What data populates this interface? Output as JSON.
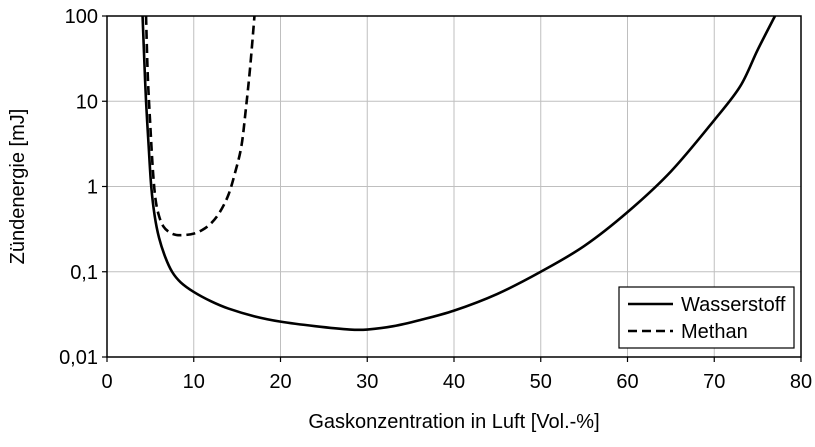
{
  "chart_data": {
    "type": "line",
    "title": "",
    "xlabel": "Gaskonzentration in Luft [Vol.-%]",
    "ylabel": "Zündenergie [mJ]",
    "xlim": [
      0,
      80
    ],
    "ylim": [
      0.01,
      100
    ],
    "yscale": "log",
    "grid": "on",
    "legend_position": "bottom-right",
    "x_ticks": [
      0,
      10,
      20,
      30,
      40,
      50,
      60,
      70,
      80
    ],
    "x_tick_labels": [
      "0",
      "10",
      "20",
      "30",
      "40",
      "50",
      "60",
      "70",
      "80"
    ],
    "y_ticks": [
      0.01,
      0.1,
      1,
      10,
      100
    ],
    "y_tick_labels": [
      "0,01",
      "0,1",
      "1",
      "10",
      "100"
    ],
    "series": [
      {
        "name": "Wasserstoff",
        "style": "solid",
        "color": "#000000",
        "x": [
          4.1,
          4.3,
          4.5,
          4.8,
          5.1,
          5.5,
          6.0,
          6.7,
          7.5,
          8.5,
          10,
          12,
          14,
          17,
          20,
          24,
          28,
          30,
          33,
          36,
          40,
          45,
          50,
          55,
          60,
          65,
          70,
          73,
          75,
          77
        ],
        "y": [
          100,
          30,
          10,
          3,
          1,
          0.45,
          0.25,
          0.15,
          0.1,
          0.075,
          0.058,
          0.045,
          0.037,
          0.03,
          0.026,
          0.023,
          0.021,
          0.021,
          0.023,
          0.027,
          0.035,
          0.055,
          0.1,
          0.2,
          0.5,
          1.5,
          6,
          15,
          40,
          100
        ]
      },
      {
        "name": "Methan",
        "style": "dashed",
        "color": "#000000",
        "x": [
          4.5,
          4.7,
          5.0,
          5.3,
          5.6,
          6.0,
          6.5,
          7.2,
          8.0,
          9.0,
          10.0,
          11.0,
          12.0,
          13.0,
          14.0,
          14.8,
          15.5,
          16.0,
          16.5,
          17.0
        ],
        "y": [
          100,
          20,
          5,
          1.5,
          0.7,
          0.45,
          0.34,
          0.29,
          0.27,
          0.27,
          0.28,
          0.31,
          0.37,
          0.5,
          0.8,
          1.5,
          3,
          8,
          25,
          100
        ]
      }
    ]
  }
}
